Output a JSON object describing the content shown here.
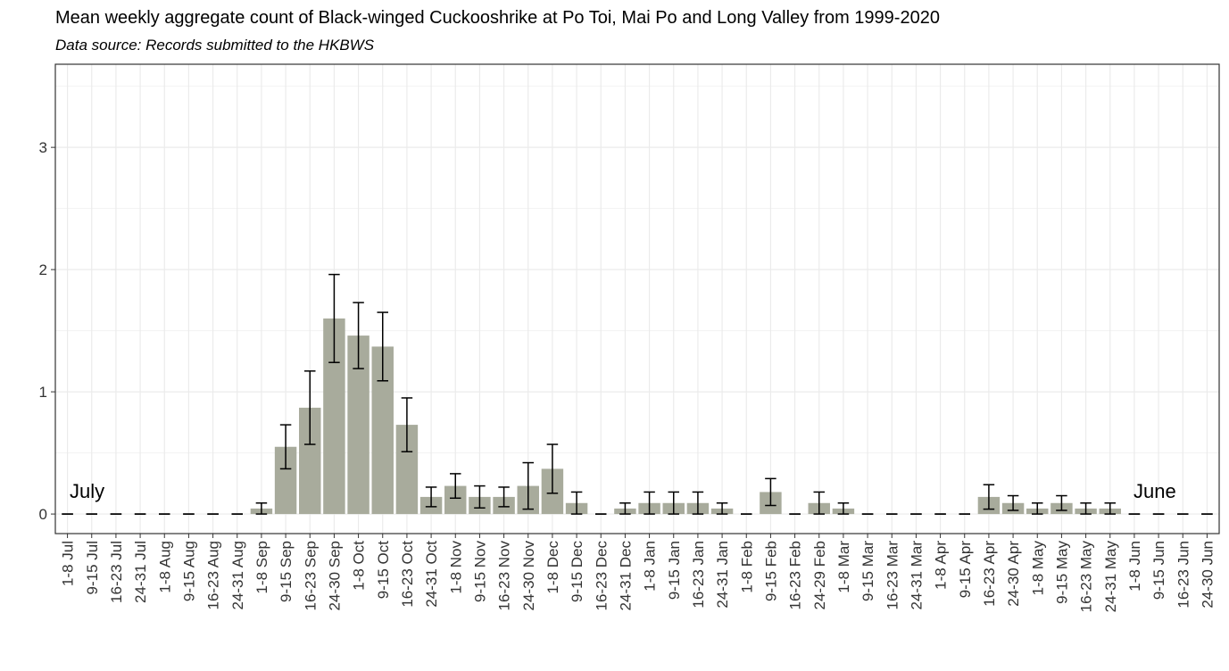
{
  "chart_data": {
    "type": "bar",
    "title": "Mean weekly aggregate count of Black-winged Cuckooshrike at Po Toi, Mai Po and Long Valley from 1999-2020",
    "subtitle": "Data source: Records submitted to the HKBWS",
    "annotations": [
      "July",
      "June"
    ],
    "categories": [
      "1-8 Jul",
      "9-15 Jul",
      "16-23 Jul",
      "24-31 Jul",
      "1-8 Aug",
      "9-15 Aug",
      "16-23 Aug",
      "24-31 Aug",
      "1-8 Sep",
      "9-15 Sep",
      "16-23 Sep",
      "24-30 Sep",
      "1-8 Oct",
      "9-15 Oct",
      "16-23 Oct",
      "24-31 Oct",
      "1-8 Nov",
      "9-15 Nov",
      "16-23 Nov",
      "24-30 Nov",
      "1-8 Dec",
      "9-15 Dec",
      "16-23 Dec",
      "24-31 Dec",
      "1-8 Jan",
      "9-15 Jan",
      "16-23 Jan",
      "24-31 Jan",
      "1-8 Feb",
      "9-15 Feb",
      "16-23 Feb",
      "24-29 Feb",
      "1-8 Mar",
      "9-15 Mar",
      "16-23 Mar",
      "24-31 Mar",
      "1-8 Apr",
      "9-15 Apr",
      "16-23 Apr",
      "24-30 Apr",
      "1-8 May",
      "9-15 May",
      "16-23 May",
      "24-31 May",
      "1-8 Jun",
      "9-15 Jun",
      "16-23 Jun",
      "24-30 Jun"
    ],
    "values": [
      0,
      0,
      0,
      0,
      0,
      0,
      0,
      0,
      0.045,
      0.55,
      0.87,
      1.6,
      1.46,
      1.37,
      0.73,
      0.14,
      0.23,
      0.14,
      0.14,
      0.23,
      0.37,
      0.09,
      0,
      0.045,
      0.09,
      0.09,
      0.09,
      0.045,
      0,
      0.18,
      0,
      0.09,
      0.045,
      0,
      0,
      0,
      0,
      0,
      0.14,
      0.09,
      0.045,
      0.09,
      0.045,
      0.045,
      0,
      0,
      0,
      0
    ],
    "errors": [
      0,
      0,
      0,
      0,
      0,
      0,
      0,
      0,
      0.045,
      0.18,
      0.3,
      0.36,
      0.27,
      0.28,
      0.22,
      0.08,
      0.1,
      0.09,
      0.08,
      0.19,
      0.2,
      0.09,
      0,
      0.045,
      0.09,
      0.09,
      0.09,
      0.045,
      0,
      0.11,
      0,
      0.09,
      0.045,
      0,
      0,
      0,
      0,
      0,
      0.1,
      0.06,
      0.045,
      0.06,
      0.045,
      0.045,
      0,
      0,
      0,
      0
    ],
    "color": "#a8ab9c",
    "ylim": [
      -0.16,
      3.68
    ],
    "yticks": [
      0,
      1,
      2,
      3
    ],
    "grid": true
  }
}
